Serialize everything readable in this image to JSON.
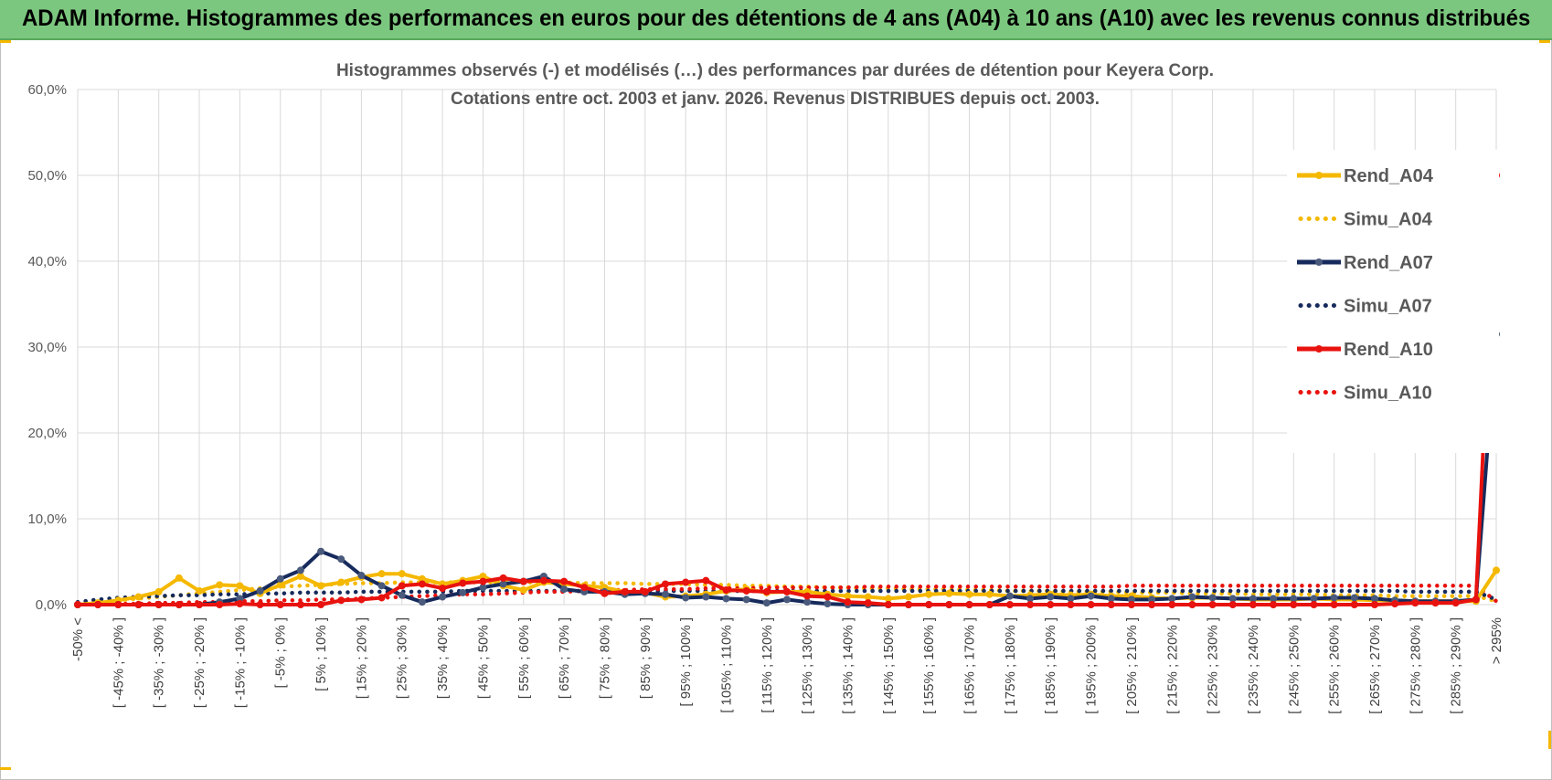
{
  "header": {
    "title": "ADAM Informe. Histogrammes des performances en euros pour des détentions de 4 ans (A04) à 10 ans (A10) avec les revenus connus distribués"
  },
  "colors": {
    "banner": "#7cc77f",
    "A04": "#f5b800",
    "A07": "#162a5c",
    "A10": "#e8120e",
    "grid": "#d9d9d9"
  },
  "chart_data": {
    "type": "line",
    "title": "Histogrammes observés (-) et modélisés (…) des performances par durées de détention pour Keyera Corp.",
    "subtitle": "Cotations entre oct. 2003 et janv. 2026. Revenus DISTRIBUES depuis oct. 2003.",
    "ylim": [
      0,
      60
    ],
    "yticks": [
      "0,0%",
      "10,0%",
      "20,0%",
      "30,0%",
      "40,0%",
      "50,0%",
      "60,0%"
    ],
    "grid": true,
    "legend_position": "right",
    "categories": [
      "-50% <",
      "[ -50% ; -45% ]",
      "[ -45% ; -40% ]",
      "[ -40% ; -35% ]",
      "[ -35% ; -30% ]",
      "[ -30% ; -25% ]",
      "[ -25% ; -20% ]",
      "[ -20% ; -15% ]",
      "[ -15% ; -10% ]",
      "[ -10% ; -5% ]",
      "[ -5% ; 0% ]",
      "[ 0% ; 5% ]",
      "[ 5% ; 10% ]",
      "[ 10% ; 15% ]",
      "[ 15% ; 20% ]",
      "[ 20% ; 25% ]",
      "[ 25% ; 30% ]",
      "[ 30% ; 35% ]",
      "[ 35% ; 40% ]",
      "[ 40% ; 45% ]",
      "[ 45% ; 50% ]",
      "[ 50% ; 55% ]",
      "[ 55% ; 60% ]",
      "[ 60% ; 65% ]",
      "[ 65% ; 70% ]",
      "[ 70% ; 75% ]",
      "[ 75% ; 80% ]",
      "[ 80% ; 85% ]",
      "[ 85% ; 90% ]",
      "[ 90% ; 95% ]",
      "[ 95% ; 100% ]",
      "[ 100% ; 105% ]",
      "[ 105% ; 110% ]",
      "[ 110% ; 115% ]",
      "[ 115% ; 120% ]",
      "[ 120% ; 125% ]",
      "[ 125% ; 130% ]",
      "[ 130% ; 135% ]",
      "[ 135% ; 140% ]",
      "[ 140% ; 145% ]",
      "[ 145% ; 150% ]",
      "[ 150% ; 155% ]",
      "[ 155% ; 160% ]",
      "[ 160% ; 165% ]",
      "[ 165% ; 170% ]",
      "[ 170% ; 175% ]",
      "[ 175% ; 180% ]",
      "[ 180% ; 185% ]",
      "[ 185% ; 190% ]",
      "[ 190% ; 195% ]",
      "[ 195% ; 200% ]",
      "[ 200% ; 205% ]",
      "[ 205% ; 210% ]",
      "[ 210% ; 215% ]",
      "[ 215% ; 220% ]",
      "[ 220% ; 225% ]",
      "[ 225% ; 230% ]",
      "[ 230% ; 235% ]",
      "[ 235% ; 240% ]",
      "[ 240% ; 245% ]",
      "[ 245% ; 250% ]",
      "[ 250% ; 255% ]",
      "[ 255% ; 260% ]",
      "[ 260% ; 265% ]",
      "[ 265% ; 270% ]",
      "[ 270% ; 275% ]",
      "[ 275% ; 280% ]",
      "[ 280% ; 285% ]",
      "[ 285% ; 290% ]",
      "[ 290% ; 295% ]",
      "> 295%"
    ],
    "series": [
      {
        "name": "Rend_A04",
        "style": "solid",
        "color": "#f5b800",
        "values": [
          0.0,
          0.2,
          0.5,
          0.9,
          1.5,
          3.1,
          1.6,
          2.3,
          2.2,
          1.3,
          2.3,
          3.3,
          2.2,
          2.6,
          3.2,
          3.6,
          3.6,
          3.0,
          2.4,
          2.8,
          3.3,
          2.2,
          1.7,
          2.6,
          2.4,
          2.2,
          2.0,
          1.5,
          1.4,
          0.9,
          1.0,
          1.2,
          1.6,
          1.8,
          1.4,
          1.5,
          1.5,
          1.2,
          1.0,
          0.9,
          0.7,
          0.9,
          1.2,
          1.3,
          1.2,
          1.2,
          1.0,
          1.1,
          1.2,
          1.1,
          1.2,
          1.0,
          1.0,
          0.8,
          0.7,
          0.8,
          0.8,
          0.7,
          0.6,
          0.6,
          0.6,
          0.7,
          0.6,
          0.6,
          0.5,
          0.5,
          0.4,
          0.4,
          0.4,
          0.4,
          4.0
        ]
      },
      {
        "name": "Simu_A04",
        "style": "dotted",
        "color": "#f5b800",
        "values": [
          0.0,
          0.3,
          0.5,
          0.7,
          0.9,
          1.1,
          1.3,
          1.5,
          1.7,
          1.9,
          2.1,
          2.2,
          2.3,
          2.4,
          2.5,
          2.5,
          2.6,
          2.6,
          2.6,
          2.6,
          2.6,
          2.6,
          2.6,
          2.6,
          2.6,
          2.5,
          2.5,
          2.5,
          2.4,
          2.4,
          2.4,
          2.3,
          2.3,
          2.2,
          2.2,
          2.1,
          2.1,
          2.0,
          2.0,
          1.9,
          1.9,
          1.8,
          1.8,
          1.8,
          1.7,
          1.7,
          1.6,
          1.6,
          1.6,
          1.5,
          1.5,
          1.5,
          1.4,
          1.4,
          1.4,
          1.3,
          1.3,
          1.3,
          1.2,
          1.2,
          1.2,
          1.2,
          1.1,
          1.1,
          1.1,
          1.0,
          1.0,
          1.0,
          1.0,
          1.0,
          0.4
        ]
      },
      {
        "name": "Rend_A07",
        "style": "solid",
        "color": "#162a5c",
        "values": [
          0.0,
          0.0,
          0.0,
          0.0,
          0.0,
          0.0,
          0.0,
          0.3,
          0.7,
          1.6,
          3.0,
          4.0,
          6.2,
          5.3,
          3.4,
          2.2,
          1.1,
          0.3,
          0.9,
          1.4,
          2.0,
          2.4,
          2.7,
          3.3,
          1.8,
          1.5,
          1.5,
          1.2,
          1.3,
          1.2,
          0.8,
          0.9,
          0.7,
          0.6,
          0.2,
          0.6,
          0.3,
          0.1,
          0.0,
          0.0,
          0.0,
          0.0,
          0.0,
          0.0,
          0.0,
          0.0,
          1.0,
          0.7,
          0.9,
          0.7,
          1.0,
          0.7,
          0.6,
          0.6,
          0.7,
          0.9,
          0.8,
          0.7,
          0.7,
          0.7,
          0.7,
          0.7,
          0.8,
          0.8,
          0.7,
          0.5,
          0.4,
          0.4,
          0.4,
          0.6,
          31.5
        ]
      },
      {
        "name": "Simu_A07",
        "style": "dotted",
        "color": "#162a5c",
        "values": [
          0.3,
          0.6,
          0.8,
          0.9,
          1.0,
          1.1,
          1.1,
          1.2,
          1.2,
          1.3,
          1.3,
          1.4,
          1.4,
          1.4,
          1.5,
          1.5,
          1.5,
          1.5,
          1.5,
          1.6,
          1.6,
          1.6,
          1.6,
          1.6,
          1.6,
          1.6,
          1.6,
          1.6,
          1.6,
          1.6,
          1.6,
          1.6,
          1.6,
          1.6,
          1.6,
          1.6,
          1.6,
          1.6,
          1.6,
          1.6,
          1.6,
          1.6,
          1.6,
          1.6,
          1.6,
          1.6,
          1.6,
          1.6,
          1.6,
          1.6,
          1.6,
          1.6,
          1.6,
          1.6,
          1.6,
          1.6,
          1.6,
          1.6,
          1.6,
          1.6,
          1.6,
          1.6,
          1.6,
          1.6,
          1.6,
          1.6,
          1.5,
          1.5,
          1.5,
          1.5,
          0.6
        ]
      },
      {
        "name": "Rend_A10",
        "style": "solid",
        "color": "#e8120e",
        "values": [
          0.0,
          0.0,
          0.0,
          0.0,
          0.0,
          0.0,
          0.0,
          0.0,
          0.1,
          0.0,
          0.0,
          0.0,
          0.0,
          0.5,
          0.6,
          0.8,
          2.2,
          2.4,
          1.9,
          2.5,
          2.7,
          3.1,
          2.7,
          2.8,
          2.7,
          2.0,
          1.3,
          1.5,
          1.5,
          2.4,
          2.6,
          2.8,
          1.7,
          1.6,
          1.5,
          1.5,
          1.0,
          0.9,
          0.3,
          0.2,
          0.0,
          0.0,
          0.0,
          0.0,
          0.0,
          0.0,
          0.0,
          0.0,
          0.0,
          0.0,
          0.0,
          0.0,
          0.0,
          0.0,
          0.0,
          0.0,
          0.0,
          0.0,
          0.0,
          0.0,
          0.0,
          0.0,
          0.0,
          0.0,
          0.0,
          0.1,
          0.2,
          0.2,
          0.2,
          0.6,
          50.0
        ]
      },
      {
        "name": "Simu_A10",
        "style": "dotted",
        "color": "#e8120e",
        "values": [
          0.0,
          0.1,
          0.1,
          0.1,
          0.2,
          0.2,
          0.3,
          0.3,
          0.4,
          0.4,
          0.5,
          0.5,
          0.6,
          0.6,
          0.7,
          0.8,
          0.9,
          1.0,
          1.1,
          1.2,
          1.2,
          1.3,
          1.4,
          1.5,
          1.5,
          1.6,
          1.7,
          1.7,
          1.8,
          1.8,
          1.8,
          1.9,
          1.9,
          1.9,
          2.0,
          2.0,
          2.0,
          2.0,
          2.0,
          2.1,
          2.1,
          2.1,
          2.1,
          2.1,
          2.1,
          2.1,
          2.1,
          2.1,
          2.1,
          2.1,
          2.1,
          2.1,
          2.2,
          2.2,
          2.2,
          2.2,
          2.2,
          2.2,
          2.2,
          2.2,
          2.2,
          2.2,
          2.2,
          2.2,
          2.2,
          2.2,
          2.2,
          2.2,
          2.2,
          2.2,
          0.4
        ]
      }
    ]
  }
}
